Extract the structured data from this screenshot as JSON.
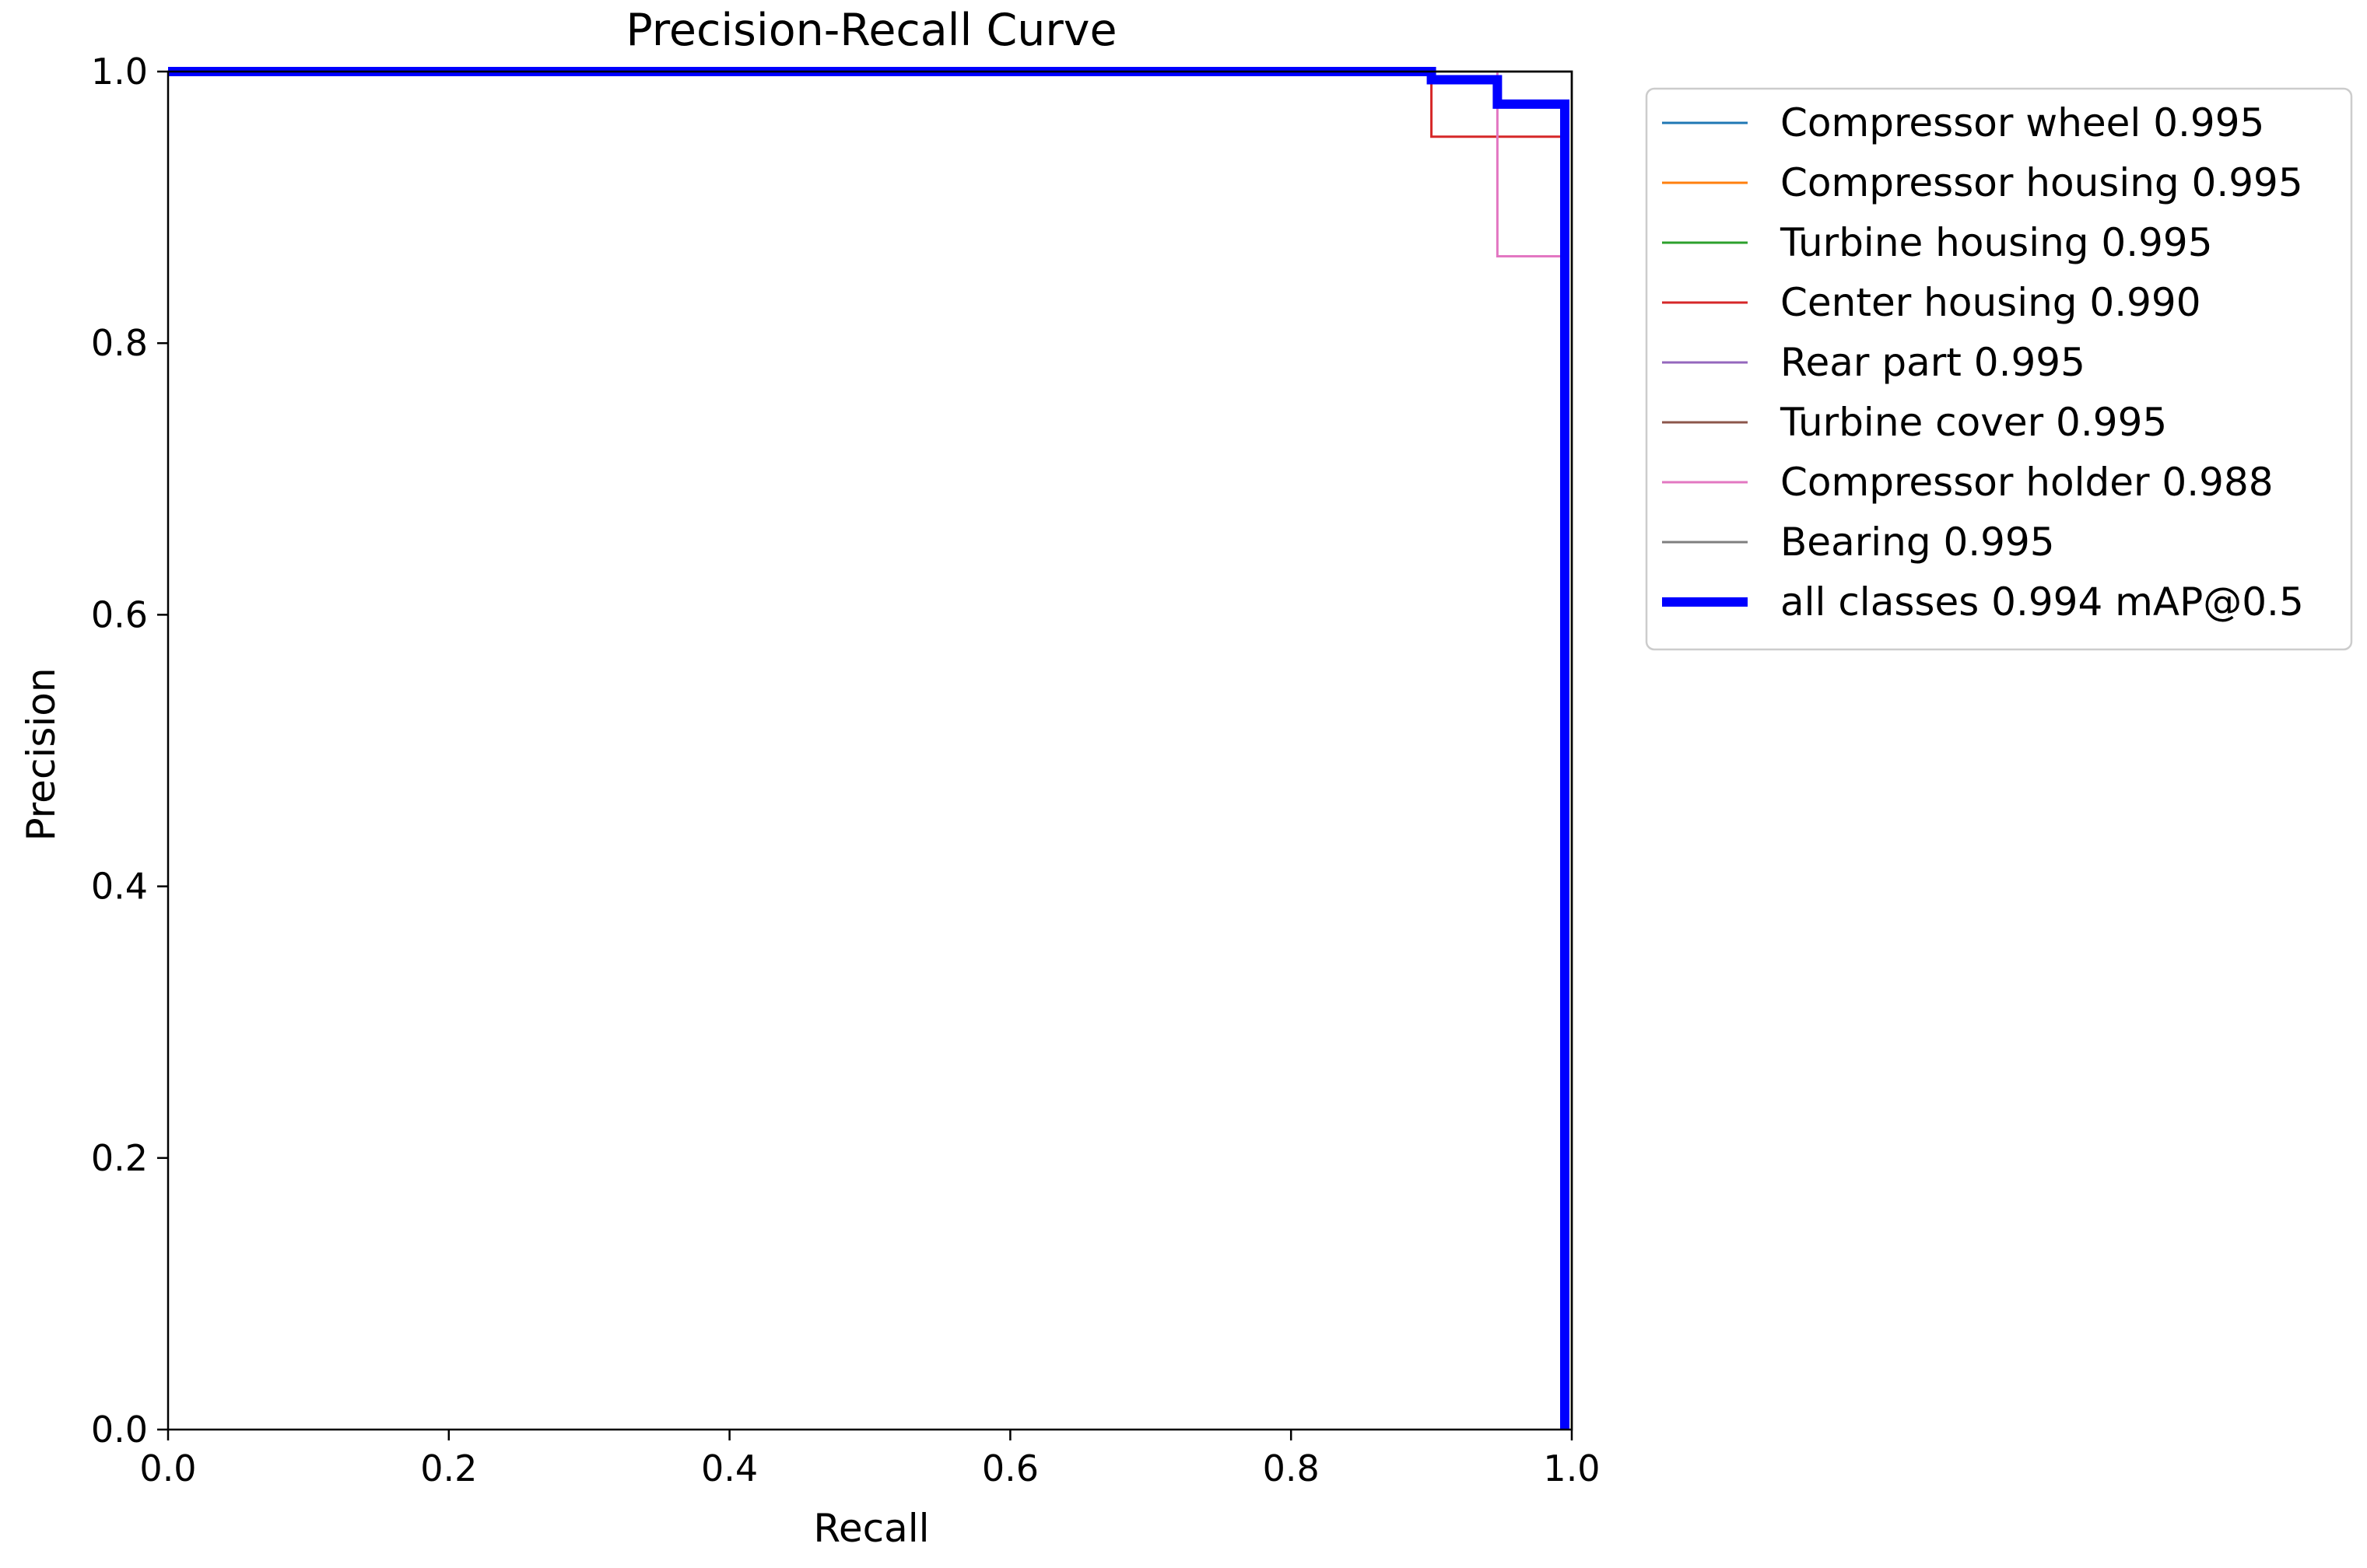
{
  "chart_data": {
    "type": "line",
    "title": "Precision-Recall Curve",
    "xlabel": "Recall",
    "ylabel": "Precision",
    "xlim": [
      0,
      1
    ],
    "ylim": [
      0,
      1
    ],
    "x_ticks": [
      "0.0",
      "0.2",
      "0.4",
      "0.6",
      "0.8",
      "1.0"
    ],
    "y_ticks": [
      "0.0",
      "0.2",
      "0.4",
      "0.6",
      "0.8",
      "1.0"
    ],
    "grid": false,
    "legend_position": "outside-top-right",
    "series": [
      {
        "name": "Compressor wheel 0.995",
        "color": "#1f77b4",
        "x": [
          0,
          1.0,
          1.0
        ],
        "y": [
          1.0,
          1.0,
          0.0
        ]
      },
      {
        "name": "Compressor housing 0.995",
        "color": "#ff7f0e",
        "x": [
          0,
          1.0,
          1.0
        ],
        "y": [
          1.0,
          1.0,
          0.0
        ]
      },
      {
        "name": "Turbine housing 0.995",
        "color": "#2ca02c",
        "x": [
          0,
          1.0,
          1.0
        ],
        "y": [
          1.0,
          1.0,
          0.0
        ]
      },
      {
        "name": "Center housing 0.990",
        "color": "#d62728",
        "x": [
          0,
          0.9,
          0.9,
          0.995,
          0.995
        ],
        "y": [
          1.0,
          1.0,
          0.952,
          0.952,
          0.0
        ]
      },
      {
        "name": "Rear part 0.995",
        "color": "#9467bd",
        "x": [
          0,
          1.0,
          1.0
        ],
        "y": [
          1.0,
          1.0,
          0.0
        ]
      },
      {
        "name": "Turbine cover 0.995",
        "color": "#8c564b",
        "x": [
          0,
          1.0,
          1.0
        ],
        "y": [
          1.0,
          1.0,
          0.0
        ]
      },
      {
        "name": "Compressor holder 0.988",
        "color": "#e377c2",
        "x": [
          0,
          0.947,
          0.947,
          0.995,
          0.995
        ],
        "y": [
          1.0,
          1.0,
          0.864,
          0.864,
          0.0
        ]
      },
      {
        "name": "Bearing 0.995",
        "color": "#7f7f7f",
        "x": [
          0,
          1.0,
          1.0
        ],
        "y": [
          1.0,
          1.0,
          0.0
        ]
      },
      {
        "name": "all classes 0.994 mAP@0.5",
        "color": "#0000ff",
        "thick": true,
        "x": [
          0,
          0.9,
          0.9,
          0.947,
          0.947,
          0.995,
          0.995
        ],
        "y": [
          1.0,
          1.0,
          0.994,
          0.994,
          0.976,
          0.976,
          0.0
        ]
      }
    ]
  }
}
